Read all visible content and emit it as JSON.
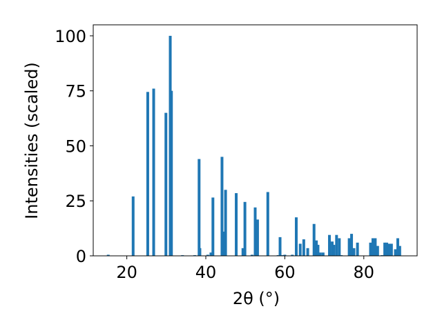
{
  "chart_data": {
    "type": "bar",
    "xlabel": "2θ (°)",
    "ylabel": "Intensities (scaled)",
    "xlim": [
      11.5,
      93.5
    ],
    "ylim": [
      0,
      105
    ],
    "xticks": [
      20,
      40,
      60,
      80
    ],
    "yticks": [
      0,
      25,
      50,
      75,
      100
    ],
    "grid": false,
    "color": "#1f77b4",
    "bar_width": 0.7,
    "x": [
      15.3,
      21.6,
      25.3,
      26.8,
      29.9,
      31.0,
      31.3,
      34.1,
      37.2,
      38.3,
      38.5,
      40.5,
      41.3,
      41.8,
      44.1,
      44.6,
      45.0,
      47.7,
      49.4,
      49.9,
      51.7,
      52.5,
      53.1,
      55.7,
      58.3,
      58.8,
      59.4,
      60.0,
      61.9,
      62.9,
      63.9,
      64.8,
      65.8,
      67.4,
      68.0,
      68.4,
      69.0,
      69.7,
      71.3,
      72.0,
      72.4,
      73.1,
      73.8,
      74.3,
      76.3,
      76.9,
      77.5,
      78.4,
      81.7,
      82.3,
      82.9,
      83.5,
      84.6,
      85.3,
      85.8,
      86.4,
      87.0,
      88.0,
      88.6,
      89.1
    ],
    "values": [
      0.5,
      27,
      74.5,
      76,
      65,
      100,
      75,
      0.3,
      0.3,
      44,
      3.5,
      0.5,
      1.5,
      26.5,
      45,
      11,
      30,
      28.5,
      3.5,
      24.5,
      0.5,
      22,
      16.5,
      29,
      0.3,
      8.5,
      0.3,
      0.5,
      0.5,
      17.5,
      5.5,
      7.5,
      3.5,
      14.5,
      7,
      5,
      1.5,
      1.5,
      9.5,
      6.5,
      5,
      9.5,
      8,
      0.3,
      8,
      10,
      3.5,
      6,
      6,
      8,
      8,
      4.5,
      0.3,
      6,
      6,
      5.5,
      5.5,
      3,
      8,
      4.5
    ]
  }
}
